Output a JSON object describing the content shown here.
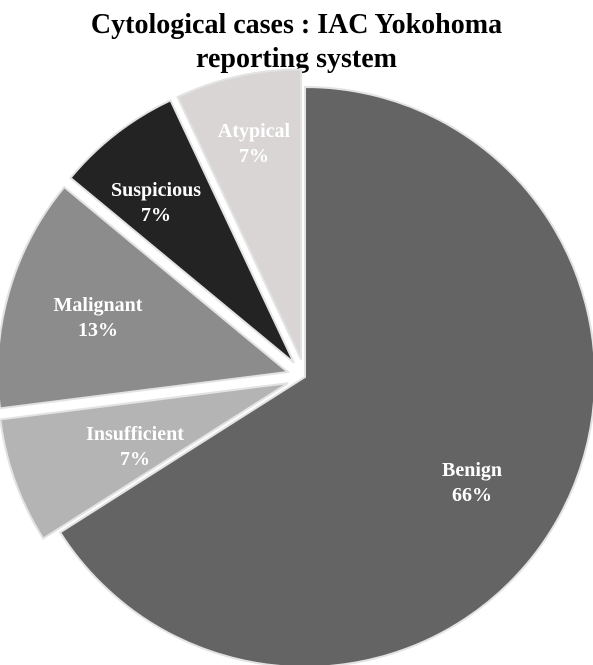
{
  "chart_data": {
    "type": "pie",
    "title_lines": [
      "Cytological cases : IAC Yokohoma",
      "reporting system"
    ],
    "slices": [
      {
        "category": "Benign",
        "value": 66,
        "label": "66%",
        "color": "#646464",
        "label_color": "#ffffff",
        "exploded": false
      },
      {
        "category": "Insufficient",
        "value": 7,
        "label": "7%",
        "color": "#b4b4b4",
        "label_color": "#ffffff",
        "exploded": true
      },
      {
        "category": "Malignant",
        "value": 13,
        "label": "13%",
        "color": "#8c8c8c",
        "label_color": "#ffffff",
        "exploded": true
      },
      {
        "category": "Suspicious",
        "value": 7,
        "label": "7%",
        "color": "#232323",
        "label_color": "#ffffff",
        "exploded": true
      },
      {
        "category": "Atypical",
        "value": 7,
        "label": "7%",
        "color": "#d9d5d5",
        "label_color": "#ffffff",
        "exploded": true
      }
    ],
    "start_angle_deg": 0,
    "direction": "clockwise",
    "legend": "none",
    "data_labels": "category and percent inside slices"
  }
}
